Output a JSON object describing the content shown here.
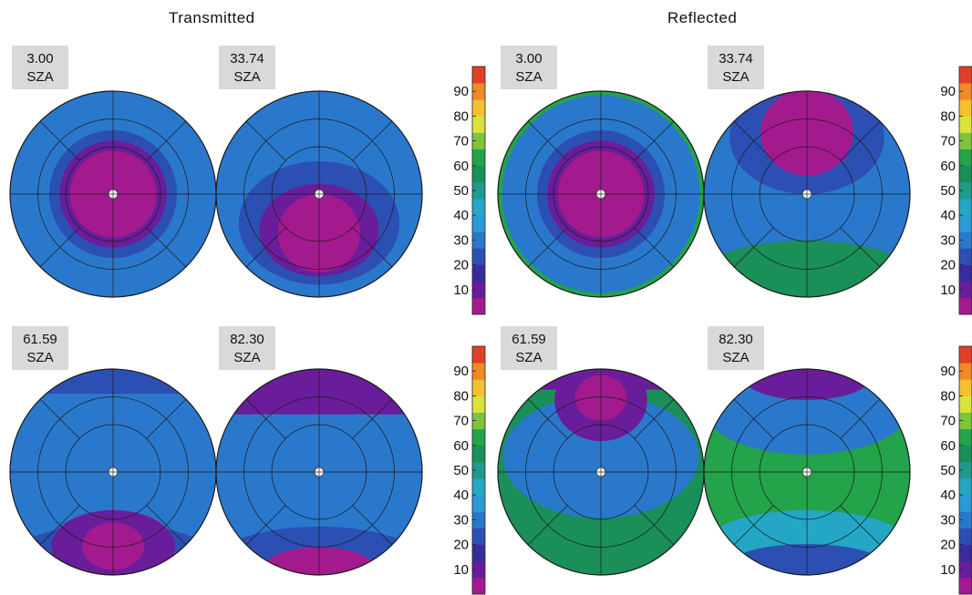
{
  "chart_data": {
    "type": "heatmap",
    "description_groups": [
      "Transmitted",
      "Reflected"
    ],
    "colorbar": {
      "ticks": [
        10,
        20,
        30,
        40,
        50,
        60,
        70,
        80,
        90
      ],
      "range": [
        0,
        100
      ],
      "colors": [
        "#a31a8f",
        "#6a1d9a",
        "#3a2b9d",
        "#2c4fb3",
        "#2a78cc",
        "#2a9bd4",
        "#23a7c4",
        "#1f9a8d",
        "#1a8f58",
        "#23a34a",
        "#7fc23c",
        "#d9e33a",
        "#f2c22d",
        "#f08a26",
        "#e0402a"
      ]
    },
    "panels": [
      {
        "group": "Transmitted",
        "sza": "3.00",
        "sza_label": "SZA",
        "rings": [
          {
            "r": 1.0,
            "v": 33
          },
          {
            "r": 0.82,
            "v": 27
          },
          {
            "r": 0.62,
            "v": 20
          },
          {
            "r": 0.52,
            "v": 13
          },
          {
            "r": 0.42,
            "v": 4
          }
        ],
        "blob": null
      },
      {
        "group": "Transmitted",
        "sza": "33.74",
        "sza_label": "SZA",
        "rings": [
          {
            "r": 1.0,
            "v": 32
          },
          {
            "r": 0.7,
            "v": 30
          },
          {
            "r": 0.3,
            "v": 27
          }
        ],
        "blob": [
          {
            "cx": 0,
            "cy": 0.28,
            "rx": 0.78,
            "ry": 0.6,
            "v": 20
          },
          {
            "cx": 0,
            "cy": 0.35,
            "rx": 0.58,
            "ry": 0.45,
            "v": 13
          },
          {
            "cx": 0,
            "cy": 0.38,
            "rx": 0.4,
            "ry": 0.38,
            "v": 4
          }
        ]
      },
      {
        "group": "Transmitted",
        "sza": "61.59",
        "sza_label": "SZA",
        "rings": [
          {
            "r": 1.0,
            "v": 33
          }
        ],
        "blob": [
          {
            "cx": 0,
            "cy": 0.95,
            "rx": 1.1,
            "ry": 0.45,
            "v": 20
          },
          {
            "cx": 0,
            "cy": 0.72,
            "rx": 0.6,
            "ry": 0.35,
            "v": 13
          },
          {
            "cx": 0,
            "cy": 0.72,
            "rx": 0.3,
            "ry": 0.23,
            "v": 4
          }
        ],
        "top": {
          "v": 20,
          "h": 0.12
        }
      },
      {
        "group": "Transmitted",
        "sza": "82.30",
        "sza_label": "SZA",
        "rings": [
          {
            "r": 1.0,
            "v": 33
          }
        ],
        "blob": [
          {
            "cx": 0,
            "cy": 0.95,
            "rx": 1.1,
            "ry": 0.42,
            "v": 20
          },
          {
            "cx": 0,
            "cy": 0.95,
            "rx": 0.55,
            "ry": 0.22,
            "v": 4
          }
        ],
        "top": {
          "v": 13,
          "h": 0.22
        }
      },
      {
        "group": "Reflected",
        "sza": "3.00",
        "sza_label": "SZA",
        "rings": [
          {
            "r": 1.0,
            "v": 60
          },
          {
            "r": 0.96,
            "v": 33
          },
          {
            "r": 0.82,
            "v": 27
          },
          {
            "r": 0.62,
            "v": 20
          },
          {
            "r": 0.52,
            "v": 13
          },
          {
            "r": 0.42,
            "v": 4
          }
        ],
        "blob": null
      },
      {
        "group": "Reflected",
        "sza": "33.74",
        "sza_label": "SZA",
        "rings": [
          {
            "r": 1.0,
            "v": 33
          }
        ],
        "blob": [
          {
            "cx": 0,
            "cy": 0.85,
            "rx": 1.1,
            "ry": 0.4,
            "v": 55
          },
          {
            "cx": 0,
            "cy": -0.55,
            "rx": 0.75,
            "ry": 0.55,
            "v": 20
          },
          {
            "cx": 0,
            "cy": -0.6,
            "rx": 0.45,
            "ry": 0.42,
            "v": 4
          }
        ]
      },
      {
        "group": "Reflected",
        "sza": "61.59",
        "sza_label": "SZA",
        "rings": [
          {
            "r": 1.0,
            "v": 55
          }
        ],
        "blob": [
          {
            "cx": 0,
            "cy": -0.15,
            "rx": 0.95,
            "ry": 0.6,
            "v": 33
          },
          {
            "cx": 0,
            "cy": -0.7,
            "rx": 0.45,
            "ry": 0.4,
            "v": 13
          },
          {
            "cx": 0,
            "cy": -0.72,
            "rx": 0.25,
            "ry": 0.22,
            "v": 4
          }
        ],
        "top": {
          "v": 13,
          "h": 0.1
        }
      },
      {
        "group": "Reflected",
        "sza": "82.30",
        "sza_label": "SZA",
        "rings": [
          {
            "r": 1.0,
            "v": 66
          }
        ],
        "blob": [
          {
            "cx": 0,
            "cy": -0.62,
            "rx": 1.0,
            "ry": 0.45,
            "v": 33
          },
          {
            "cx": 0,
            "cy": -0.9,
            "rx": 0.6,
            "ry": 0.2,
            "v": 8
          },
          {
            "cx": 0,
            "cy": 0.72,
            "rx": 1.0,
            "ry": 0.35,
            "v": 40
          },
          {
            "cx": 0,
            "cy": 0.9,
            "rx": 0.75,
            "ry": 0.2,
            "v": 25
          }
        ],
        "top": {
          "v": 33,
          "h": 0.0
        }
      }
    ]
  },
  "titles": {
    "left": "Transmitted",
    "right": "Reflected"
  }
}
